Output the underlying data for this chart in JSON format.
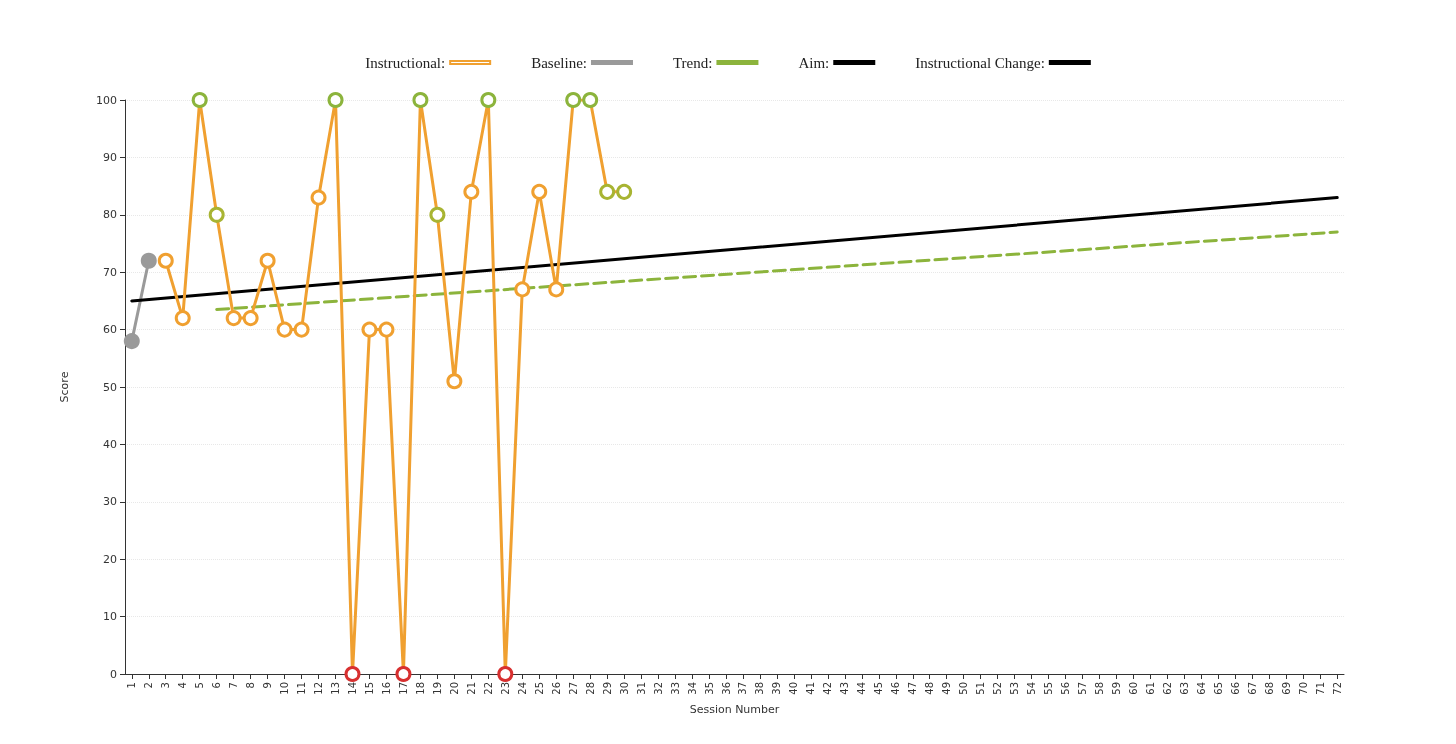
{
  "chart_data": {
    "type": "line",
    "xlabel": "Session Number",
    "ylabel": "Score",
    "xlim": [
      0.6,
      72.4
    ],
    "xticks": [
      1,
      2,
      3,
      4,
      5,
      6,
      7,
      8,
      9,
      10,
      11,
      12,
      13,
      14,
      15,
      16,
      17,
      18,
      19,
      20,
      21,
      22,
      23,
      24,
      25,
      26,
      27,
      28,
      29,
      30,
      31,
      32,
      33,
      34,
      35,
      36,
      37,
      38,
      39,
      40,
      41,
      42,
      43,
      44,
      45,
      46,
      47,
      48,
      49,
      50,
      51,
      52,
      53,
      54,
      55,
      56,
      57,
      58,
      59,
      60,
      61,
      62,
      63,
      64,
      65,
      66,
      67,
      68,
      69,
      70,
      71,
      72
    ],
    "ylim": [
      0,
      100
    ],
    "yticks": [
      0,
      10,
      20,
      30,
      40,
      50,
      60,
      70,
      80,
      90,
      100
    ],
    "grid": "y",
    "legend": "top",
    "series": [
      {
        "name": "Instructional:",
        "color": "#f0a030",
        "marker": "circle",
        "x": [
          3,
          4,
          5,
          6,
          7,
          8,
          9,
          10,
          11,
          12,
          13,
          14,
          15,
          16,
          17,
          18,
          19,
          20,
          21,
          22,
          23,
          24,
          25,
          26,
          27,
          28,
          29,
          30
        ],
        "values": [
          72,
          62,
          100,
          80,
          62,
          62,
          72,
          60,
          60,
          83,
          100,
          0,
          60,
          60,
          0,
          100,
          80,
          51,
          84,
          100,
          0,
          67,
          84,
          67,
          100,
          100,
          84,
          84
        ],
        "colors": [
          "#f0a030",
          "#f0a030",
          "#8cb43c",
          "#a8b432",
          "#f0a030",
          "#f0a030",
          "#f0a030",
          "#f0a030",
          "#f0a030",
          "#f0a030",
          "#8cb43c",
          "#d83030",
          "#f0a030",
          "#f0a030",
          "#d83030",
          "#8cb43c",
          "#a8b432",
          "#f0a030",
          "#f0a030",
          "#8cb43c",
          "#d83030",
          "#f0a030",
          "#f0a030",
          "#f0a030",
          "#8cb43c",
          "#8cb43c",
          "#a8b432",
          "#a8b432"
        ]
      },
      {
        "name": "Baseline:",
        "color": "#9a9a9a",
        "marker": "circle",
        "x": [
          1,
          2
        ],
        "values": [
          58,
          72
        ]
      },
      {
        "name": "Trend:",
        "color": "#8cb43c",
        "marker": "none",
        "line_style": "dashed",
        "x": [
          6,
          72
        ],
        "values": [
          63.5,
          77
        ]
      },
      {
        "name": "Aim:",
        "color": "#000000",
        "marker": "none",
        "x": [
          1,
          72
        ],
        "values": [
          65,
          83
        ]
      },
      {
        "name": "Instructional Change:",
        "color": "#000000",
        "marker": "none",
        "line_style": "dashed"
      }
    ]
  }
}
